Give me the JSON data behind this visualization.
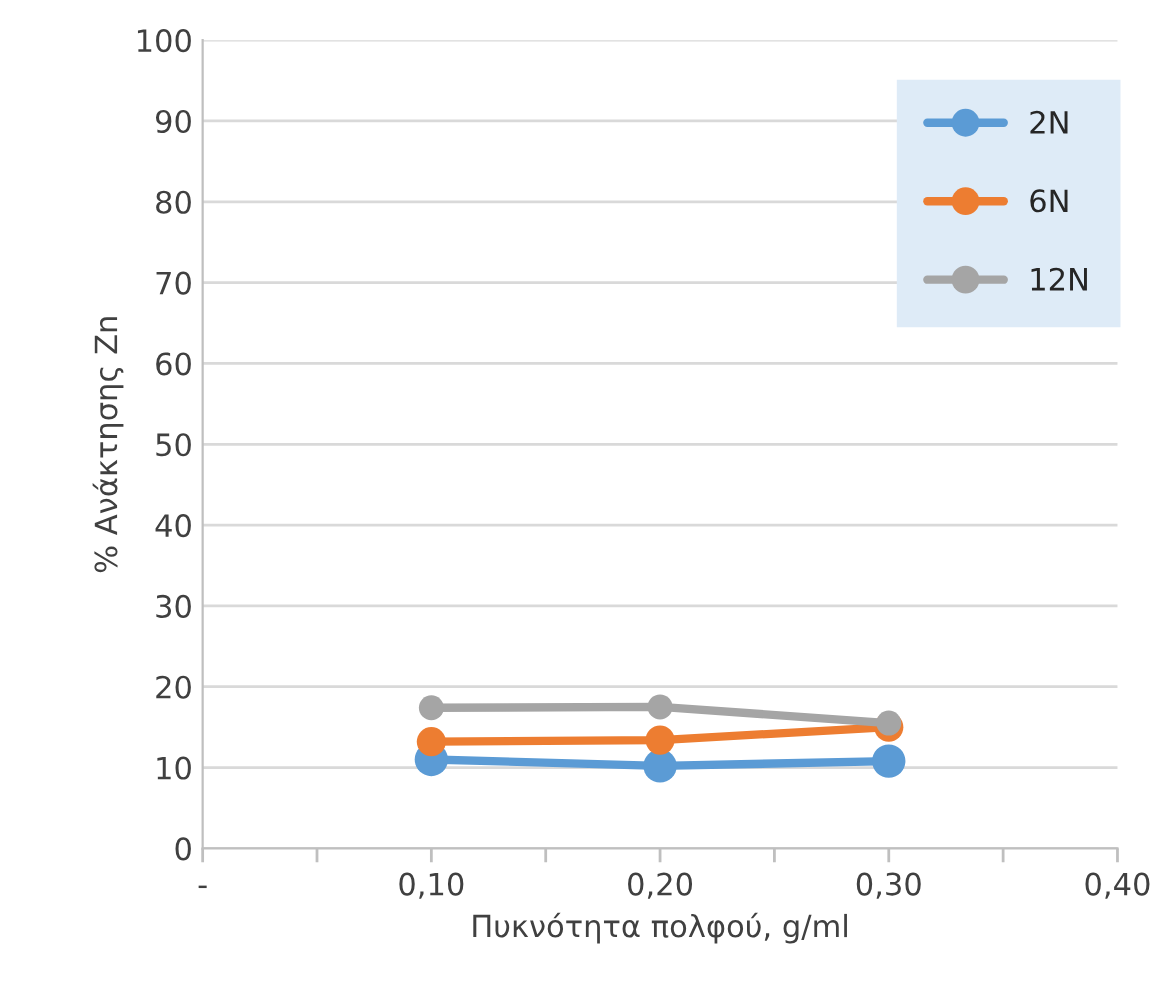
{
  "chart_data": {
    "type": "line",
    "xlabel": "Πυκνότητα πολφού, g/ml",
    "ylabel": "% Ανάκτησης Zn",
    "x": [
      0.1,
      0.2,
      0.3
    ],
    "series": [
      {
        "name": "2N",
        "color": "#5b9bd5",
        "values": [
          11,
          10.2,
          10.8
        ]
      },
      {
        "name": "6N",
        "color": "#ed7d31",
        "values": [
          13.2,
          13.4,
          15
        ]
      },
      {
        "name": "12N",
        "color": "#a5a5a5",
        "values": [
          17.4,
          17.5,
          15.5
        ]
      }
    ],
    "xlim": [
      0,
      0.4
    ],
    "xticks": [
      {
        "value": 0,
        "label": "-"
      },
      {
        "value": 0.05,
        "label": null
      },
      {
        "value": 0.1,
        "label": "0,10"
      },
      {
        "value": 0.15,
        "label": null
      },
      {
        "value": 0.2,
        "label": "0,20"
      },
      {
        "value": 0.25,
        "label": null
      },
      {
        "value": 0.3,
        "label": "0,30"
      },
      {
        "value": 0.35,
        "label": null
      },
      {
        "value": 0.4,
        "label": "0,40"
      }
    ],
    "ylim": [
      0,
      100
    ],
    "yticks": [
      0,
      10,
      20,
      30,
      40,
      50,
      60,
      70,
      80,
      90,
      100
    ],
    "grid": "y",
    "legend": "top right",
    "marker": "circle",
    "line_style": "solid"
  }
}
